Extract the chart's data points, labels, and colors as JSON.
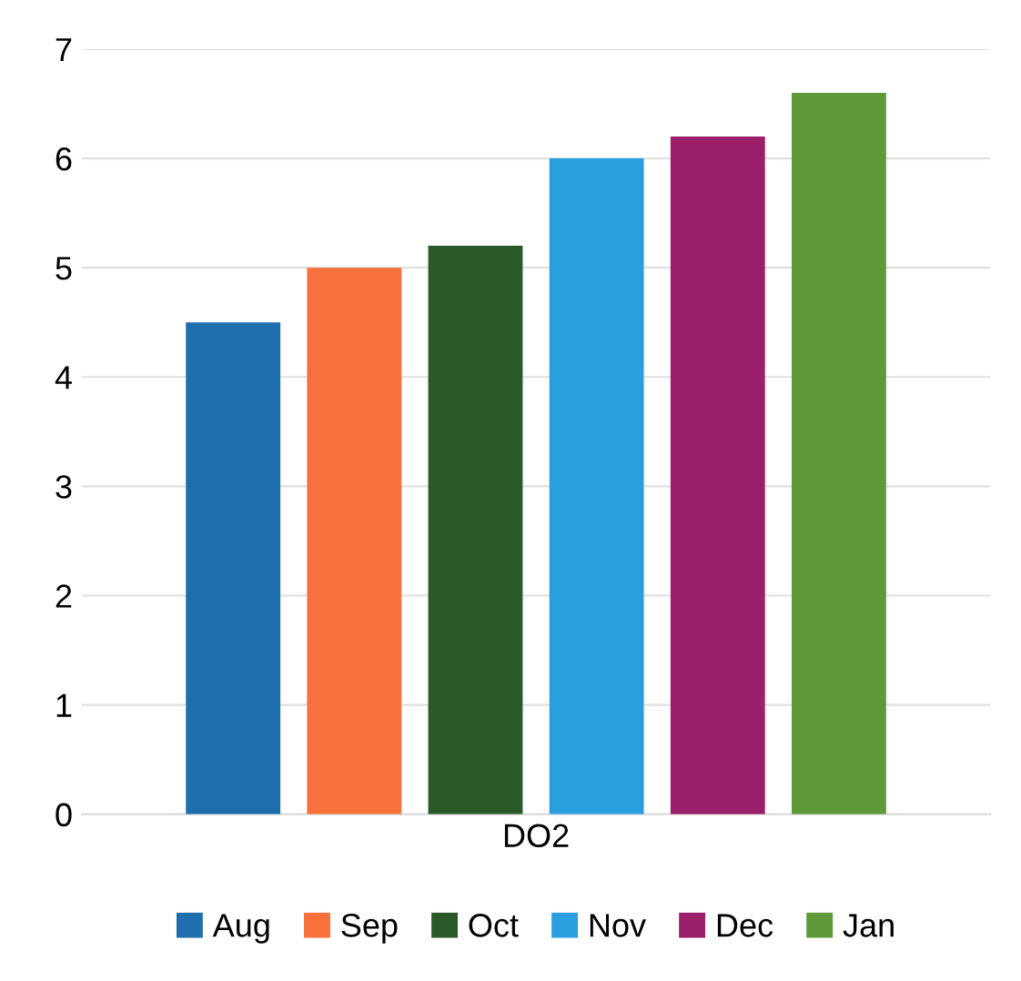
{
  "chart_data": {
    "type": "bar",
    "categories": [
      "DO2"
    ],
    "series": [
      {
        "name": "Aug",
        "color": "#1f6fae",
        "values": [
          4.5
        ]
      },
      {
        "name": "Sep",
        "color": "#f8703c",
        "values": [
          5.0
        ]
      },
      {
        "name": "Oct",
        "color": "#2a5a2a",
        "values": [
          5.2
        ]
      },
      {
        "name": "Nov",
        "color": "#2a9fe0",
        "values": [
          6.0
        ]
      },
      {
        "name": "Dec",
        "color": "#9b1f6a",
        "values": [
          6.2
        ]
      },
      {
        "name": "Jan",
        "color": "#5e9a3a",
        "values": [
          6.6
        ]
      }
    ],
    "ylim": [
      0,
      7
    ],
    "yticks": [
      0,
      1,
      2,
      3,
      4,
      5,
      6,
      7
    ],
    "grid": "y",
    "legend": "bottom"
  }
}
